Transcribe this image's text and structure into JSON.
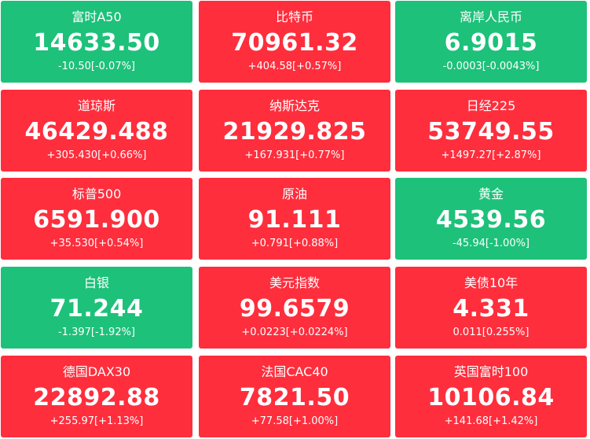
{
  "colors": {
    "up": "#fe2e3d",
    "down": "#1dc17a",
    "text": "#ffffff"
  },
  "tiles": [
    {
      "name": "富时A50",
      "price": "14633.50",
      "change": "-10.50[-0.07%]",
      "trend": "down"
    },
    {
      "name": "比特币",
      "price": "70961.32",
      "change": "+404.58[+0.57%]",
      "trend": "up"
    },
    {
      "name": "离岸人民币",
      "price": "6.9015",
      "change": "-0.0003[-0.0043%]",
      "trend": "down"
    },
    {
      "name": "道琼斯",
      "price": "46429.488",
      "change": "+305.430[+0.66%]",
      "trend": "up"
    },
    {
      "name": "纳斯达克",
      "price": "21929.825",
      "change": "+167.931[+0.77%]",
      "trend": "up"
    },
    {
      "name": "日经225",
      "price": "53749.55",
      "change": "+1497.27[+2.87%]",
      "trend": "up"
    },
    {
      "name": "标普500",
      "price": "6591.900",
      "change": "+35.530[+0.54%]",
      "trend": "up"
    },
    {
      "name": "原油",
      "price": "91.111",
      "change": "+0.791[+0.88%]",
      "trend": "up"
    },
    {
      "name": "黄金",
      "price": "4539.56",
      "change": "-45.94[-1.00%]",
      "trend": "down"
    },
    {
      "name": "白银",
      "price": "71.244",
      "change": "-1.397[-1.92%]",
      "trend": "down"
    },
    {
      "name": "美元指数",
      "price": "99.6579",
      "change": "+0.0223[+0.0224%]",
      "trend": "up"
    },
    {
      "name": "美债10年",
      "price": "4.331",
      "change": "0.011[0.255%]",
      "trend": "up"
    },
    {
      "name": "德国DAX30",
      "price": "22892.88",
      "change": "+255.97[+1.13%]",
      "trend": "up"
    },
    {
      "name": "法国CAC40",
      "price": "7821.50",
      "change": "+77.58[+1.00%]",
      "trend": "up"
    },
    {
      "name": "英国富时100",
      "price": "10106.84",
      "change": "+141.68[+1.42%]",
      "trend": "up"
    }
  ]
}
